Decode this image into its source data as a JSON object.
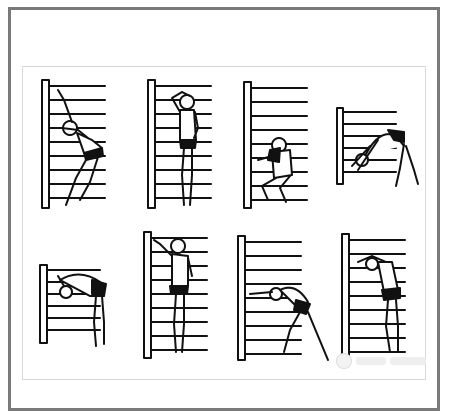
{
  "figure": {
    "panels": [
      {
        "id": 1,
        "pose": "side-stretch-arm-overhead"
      },
      {
        "id": 2,
        "pose": "standing-hand-on-head"
      },
      {
        "id": 3,
        "pose": "deep-squat-facing-bars"
      },
      {
        "id": 4,
        "pose": "back-bridge-hands-on-bars"
      },
      {
        "id": 5,
        "pose": "forward-bend-hands-on-bars"
      },
      {
        "id": 6,
        "pose": "standing-arm-raised"
      },
      {
        "id": 7,
        "pose": "lunge-stretch-arm-forward"
      },
      {
        "id": 8,
        "pose": "forward-lean-arms-on-bars"
      }
    ],
    "colors": {
      "ink": "#111111",
      "frame": "#7a7a7a",
      "paper": "#ffffff"
    }
  }
}
